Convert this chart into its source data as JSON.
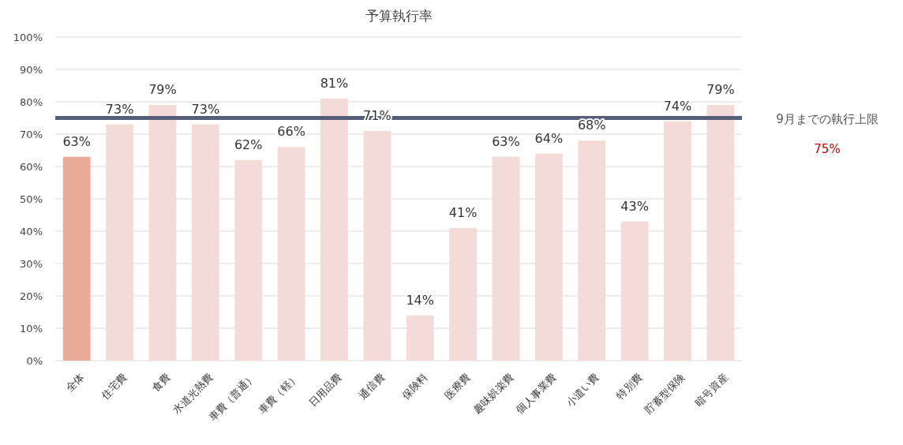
{
  "chart_data": {
    "type": "bar",
    "title": "予算執行率",
    "categories": [
      "全体",
      "住宅費",
      "食費",
      "水道光熱費",
      "車費（普通）",
      "車費（軽）",
      "日用品費",
      "通信費",
      "保険料",
      "医療費",
      "趣味娯楽費",
      "個人事業費",
      "小遣い費",
      "特別費",
      "貯蓄型保険",
      "暗号資産"
    ],
    "values": [
      63,
      73,
      79,
      73,
      62,
      66,
      81,
      71,
      14,
      41,
      63,
      64,
      68,
      43,
      74,
      79
    ],
    "colors": [
      "#e9ab99",
      "#f5dbd7",
      "#f5dbd7",
      "#f5dbd7",
      "#f5dbd7",
      "#f5dbd7",
      "#f5dbd7",
      "#f5dbd7",
      "#f5dbd7",
      "#f5dbd7",
      "#f5dbd7",
      "#f5dbd7",
      "#f5dbd7",
      "#f5dbd7",
      "#f5dbd7",
      "#f5dbd7"
    ],
    "value_labels": [
      "63%",
      "73%",
      "79%",
      "73%",
      "62%",
      "66%",
      "81%",
      "71%",
      "14%",
      "41%",
      "63%",
      "64%",
      "68%",
      "43%",
      "74%",
      "79%"
    ],
    "ylim": [
      0,
      100
    ],
    "yticks": [
      {
        "value": 0,
        "label": "0%"
      },
      {
        "value": 10,
        "label": "10%"
      },
      {
        "value": 20,
        "label": "20%"
      },
      {
        "value": 30,
        "label": "30%"
      },
      {
        "value": 40,
        "label": "40%"
      },
      {
        "value": 50,
        "label": "50%"
      },
      {
        "value": 60,
        "label": "60%"
      },
      {
        "value": 70,
        "label": "70%"
      },
      {
        "value": 80,
        "label": "80%"
      },
      {
        "value": 90,
        "label": "90%"
      },
      {
        "value": 100,
        "label": "100%"
      }
    ],
    "grid": "y",
    "ref_lines": [
      {
        "axis": "y",
        "value": 75,
        "label": "9月までの執行上限",
        "color": "#565d78"
      }
    ],
    "annotations": [
      "75%"
    ]
  }
}
